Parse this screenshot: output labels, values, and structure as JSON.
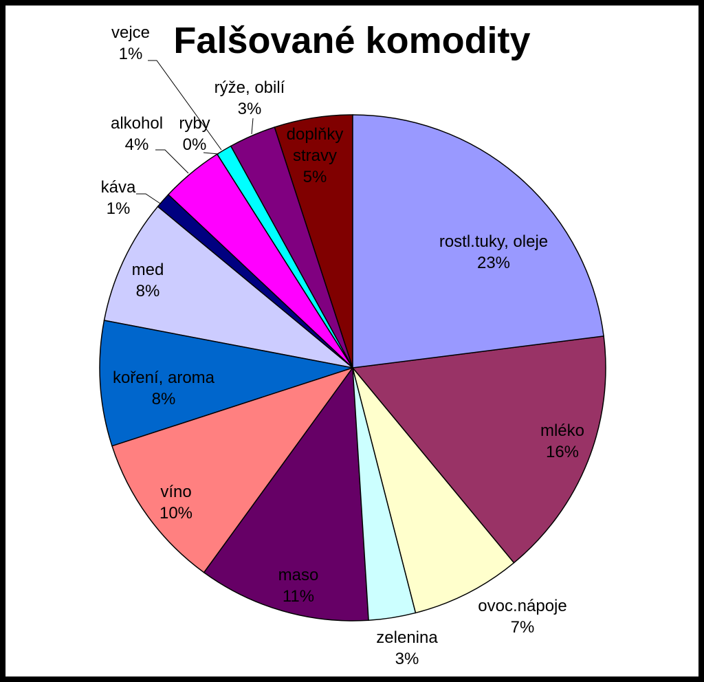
{
  "chart_data": {
    "type": "pie",
    "title": "Falšované komodity",
    "categories": [
      "rostl.tuky, oleje",
      "mléko",
      "ovoc.nápoje",
      "zelenina",
      "maso",
      "víno",
      "koření, aroma",
      "med",
      "káva",
      "alkohol",
      "ryby",
      "vejce",
      "rýže, obilí",
      "doplňky stravy"
    ],
    "values": [
      23,
      16,
      7,
      3,
      11,
      10,
      8,
      8,
      1,
      4,
      0,
      1,
      3,
      5
    ],
    "value_labels": [
      "23%",
      "16%",
      "7%",
      "3%",
      "11%",
      "10%",
      "8%",
      "8%",
      "1%",
      "4%",
      "0%",
      "1%",
      "3%",
      "5%"
    ],
    "colors": [
      "#9999ff",
      "#993366",
      "#ffffcc",
      "#ccffff",
      "#660066",
      "#ff8080",
      "#0066cc",
      "#ccccff",
      "#000080",
      "#ff00ff",
      "#33cccc",
      "#00ffff",
      "#800080",
      "#800000"
    ]
  }
}
